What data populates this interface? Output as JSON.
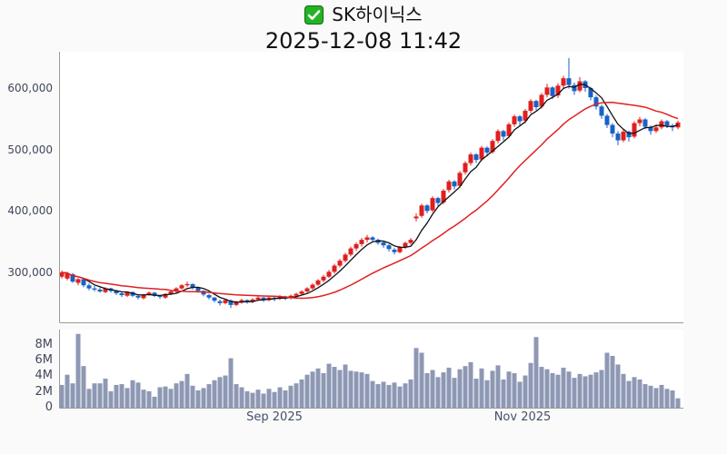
{
  "header": {
    "checkbox_glyph": "check",
    "title": "SK하이닉스",
    "datetime": "2025-12-08 11:42"
  },
  "colors": {
    "background": "#fafafa",
    "plot_background": "#ffffff",
    "axis_line": "#999999",
    "tick_text": "#40485a",
    "title_text": "#111111",
    "checkbox_green": "#24b324",
    "up_candle": "#e01e1e",
    "down_candle": "#1862c6",
    "volume_bar": "#8e98b4",
    "ma_short": "#111111",
    "ma_long": "#e02020"
  },
  "chart_data": {
    "type": "candlestick_with_volume",
    "title": "SK하이닉스",
    "subtitle": "2025-12-08 11:42",
    "prices_in": "thousand KRW",
    "volumes_in": "million shares",
    "grid": false,
    "legend": false,
    "price_axis": {
      "side": "left",
      "range": [
        218000,
        659000
      ],
      "ticks": [
        {
          "label": "600,000",
          "value": 600000
        },
        {
          "label": "500,000",
          "value": 500000
        },
        {
          "label": "400,000",
          "value": 400000
        },
        {
          "label": "300,000",
          "value": 300000
        }
      ]
    },
    "volume_axis": {
      "side": "left",
      "range": [
        0,
        10
      ],
      "ticks": [
        {
          "label": "8M",
          "value": 8
        },
        {
          "label": "6M",
          "value": 6
        },
        {
          "label": "4M",
          "value": 4
        },
        {
          "label": "2M",
          "value": 2
        },
        {
          "label": "0",
          "value": 0
        }
      ]
    },
    "x_axis": {
      "ticks": [
        {
          "label": "Sep 2025",
          "index": 39
        },
        {
          "label": "Nov 2025",
          "index": 84.5
        }
      ]
    },
    "ma_lines": [
      {
        "name": "short-term-ma",
        "window": 5,
        "color": "#111111"
      },
      {
        "name": "long-term-ma",
        "window": 20,
        "color": "#e02020"
      }
    ],
    "candles_format": [
      "open",
      "high",
      "low",
      "close",
      "volume_millions"
    ],
    "candles": [
      [
        293,
        303,
        290,
        300,
        2.9
      ],
      [
        290,
        301,
        287,
        298,
        4.2
      ],
      [
        297,
        299,
        283,
        285,
        3.1
      ],
      [
        283,
        291,
        279,
        289,
        9.4
      ],
      [
        289,
        290,
        276,
        279,
        5.3
      ],
      [
        279,
        282,
        271,
        274,
        2.4
      ],
      [
        274,
        278,
        269,
        272,
        3.1
      ],
      [
        272,
        276,
        267,
        269,
        3.1
      ],
      [
        268,
        276,
        266,
        274,
        3.7
      ],
      [
        274,
        275,
        267,
        270,
        2.1
      ],
      [
        270,
        271,
        263,
        266,
        2.9
      ],
      [
        266,
        268,
        260,
        263,
        3.0
      ],
      [
        262,
        269,
        260,
        268,
        2.5
      ],
      [
        268,
        269,
        260,
        262,
        3.5
      ],
      [
        262,
        263,
        256,
        259,
        3.2
      ],
      [
        258,
        265,
        256,
        264,
        2.3
      ],
      [
        264,
        269,
        262,
        267,
        2.1
      ],
      [
        267,
        268,
        260,
        262,
        1.4
      ],
      [
        262,
        263,
        257,
        260,
        2.6
      ],
      [
        259,
        266,
        257,
        265,
        2.7
      ],
      [
        265,
        271,
        263,
        269,
        2.4
      ],
      [
        269,
        276,
        266,
        274,
        3.1
      ],
      [
        274,
        281,
        272,
        279,
        3.4
      ],
      [
        279,
        285,
        276,
        281,
        4.3
      ],
      [
        281,
        282,
        272,
        275,
        2.8
      ],
      [
        275,
        276,
        267,
        270,
        2.2
      ],
      [
        270,
        271,
        261,
        264,
        2.5
      ],
      [
        263,
        265,
        256,
        259,
        3.0
      ],
      [
        259,
        260,
        251,
        254,
        3.5
      ],
      [
        253,
        256,
        246,
        250,
        3.9
      ],
      [
        250,
        257,
        248,
        255,
        4.1
      ],
      [
        254,
        256,
        242,
        247,
        6.3
      ],
      [
        247,
        254,
        245,
        252,
        3.0
      ],
      [
        252,
        257,
        249,
        255,
        2.6
      ],
      [
        255,
        256,
        249,
        252,
        2.1
      ],
      [
        252,
        258,
        250,
        256,
        1.9
      ],
      [
        256,
        261,
        254,
        259,
        2.3
      ],
      [
        259,
        260,
        252,
        255,
        1.8
      ],
      [
        255,
        261,
        253,
        259,
        2.4
      ],
      [
        259,
        260,
        253,
        257,
        2.0
      ],
      [
        257,
        263,
        255,
        261,
        2.6
      ],
      [
        261,
        262,
        255,
        258,
        2.2
      ],
      [
        258,
        264,
        256,
        262,
        2.8
      ],
      [
        262,
        267,
        259,
        265,
        3.1
      ],
      [
        265,
        271,
        263,
        269,
        3.6
      ],
      [
        269,
        276,
        267,
        274,
        4.2
      ],
      [
        274,
        282,
        272,
        280,
        4.6
      ],
      [
        280,
        289,
        278,
        287,
        5.0
      ],
      [
        287,
        296,
        284,
        293,
        4.4
      ],
      [
        293,
        304,
        291,
        301,
        5.6
      ],
      [
        301,
        314,
        298,
        311,
        5.2
      ],
      [
        311,
        322,
        308,
        319,
        4.8
      ],
      [
        319,
        332,
        316,
        329,
        5.5
      ],
      [
        329,
        342,
        326,
        339,
        4.7
      ],
      [
        339,
        349,
        335,
        346,
        4.6
      ],
      [
        346,
        356,
        342,
        353,
        4.5
      ],
      [
        353,
        361,
        349,
        357,
        4.3
      ],
      [
        357,
        359,
        350,
        353,
        3.4
      ],
      [
        353,
        355,
        345,
        348,
        3.0
      ],
      [
        349,
        351,
        340,
        344,
        3.3
      ],
      [
        344,
        346,
        334,
        338,
        2.9
      ],
      [
        337,
        340,
        329,
        333,
        3.2
      ],
      [
        333,
        343,
        331,
        341,
        2.7
      ],
      [
        341,
        350,
        338,
        348,
        3.1
      ],
      [
        348,
        356,
        345,
        353,
        3.6
      ],
      [
        388,
        396,
        383,
        391,
        7.6
      ],
      [
        392,
        412,
        389,
        409,
        7.0
      ],
      [
        409,
        411,
        396,
        400,
        4.4
      ],
      [
        401,
        424,
        398,
        421,
        4.8
      ],
      [
        421,
        423,
        407,
        413,
        3.9
      ],
      [
        414,
        436,
        411,
        433,
        4.5
      ],
      [
        434,
        451,
        430,
        448,
        5.1
      ],
      [
        448,
        450,
        435,
        440,
        3.8
      ],
      [
        441,
        465,
        438,
        462,
        4.9
      ],
      [
        463,
        481,
        459,
        478,
        5.3
      ],
      [
        478,
        495,
        474,
        492,
        5.8
      ],
      [
        492,
        494,
        478,
        483,
        3.7
      ],
      [
        484,
        506,
        481,
        503,
        5.0
      ],
      [
        503,
        505,
        489,
        495,
        3.5
      ],
      [
        496,
        517,
        493,
        514,
        4.7
      ],
      [
        514,
        533,
        510,
        530,
        5.4
      ],
      [
        530,
        532,
        515,
        521,
        3.6
      ],
      [
        522,
        544,
        519,
        541,
        4.6
      ],
      [
        541,
        557,
        537,
        554,
        4.4
      ],
      [
        554,
        556,
        540,
        546,
        3.3
      ],
      [
        547,
        566,
        543,
        563,
        4.1
      ],
      [
        563,
        582,
        559,
        579,
        5.7
      ],
      [
        579,
        581,
        564,
        569,
        9.0
      ],
      [
        570,
        592,
        567,
        589,
        5.2
      ],
      [
        589,
        607,
        585,
        601,
        4.9
      ],
      [
        601,
        603,
        582,
        587,
        4.4
      ],
      [
        588,
        608,
        584,
        604,
        4.2
      ],
      [
        604,
        620,
        600,
        616,
        5.1
      ],
      [
        616,
        649,
        599,
        605,
        4.6
      ],
      [
        605,
        609,
        589,
        595,
        3.8
      ],
      [
        596,
        618,
        593,
        611,
        4.3
      ],
      [
        611,
        613,
        594,
        600,
        4.0
      ],
      [
        600,
        602,
        580,
        585,
        4.2
      ],
      [
        585,
        588,
        565,
        570,
        4.5
      ],
      [
        570,
        573,
        550,
        555,
        4.8
      ],
      [
        555,
        558,
        535,
        540,
        7.0
      ],
      [
        540,
        543,
        520,
        526,
        6.6
      ],
      [
        526,
        530,
        507,
        515,
        5.5
      ],
      [
        515,
        533,
        512,
        529,
        4.3
      ],
      [
        529,
        531,
        513,
        520,
        3.4
      ],
      [
        521,
        546,
        518,
        543,
        3.9
      ],
      [
        543,
        553,
        538,
        549,
        3.6
      ],
      [
        549,
        551,
        533,
        537,
        3.0
      ],
      [
        537,
        539,
        524,
        530,
        2.8
      ],
      [
        530,
        541,
        527,
        536,
        2.5
      ],
      [
        536,
        549,
        533,
        546,
        2.9
      ],
      [
        546,
        548,
        535,
        539,
        2.4
      ],
      [
        539,
        542,
        530,
        536,
        2.2
      ],
      [
        536,
        547,
        533,
        544,
        1.2
      ]
    ]
  }
}
